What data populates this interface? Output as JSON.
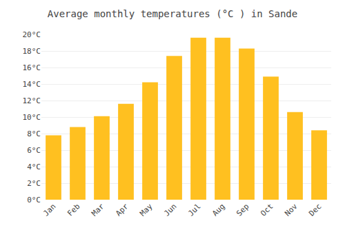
{
  "chart_data": {
    "type": "bar",
    "title": "Average monthly temperatures (°C ) in Sande",
    "categories": [
      "Jan",
      "Feb",
      "Mar",
      "Apr",
      "May",
      "Jun",
      "Jul",
      "Aug",
      "Sep",
      "Oct",
      "Nov",
      "Dec"
    ],
    "values": [
      7.8,
      8.8,
      10.1,
      11.6,
      14.2,
      17.4,
      19.6,
      19.6,
      18.3,
      14.9,
      10.6,
      8.4
    ],
    "color": "#FFC020",
    "ylim": [
      0,
      20
    ],
    "yticks": [
      {
        "value": 0,
        "label": "0°C"
      },
      {
        "value": 2,
        "label": "2°C"
      },
      {
        "value": 4,
        "label": "4°C"
      },
      {
        "value": 6,
        "label": "6°C"
      },
      {
        "value": 8,
        "label": "8°C"
      },
      {
        "value": 10,
        "label": "10°C"
      },
      {
        "value": 12,
        "label": "12°C"
      },
      {
        "value": 14,
        "label": "14°C"
      },
      {
        "value": 16,
        "label": "16°C"
      },
      {
        "value": 18,
        "label": "18°C"
      },
      {
        "value": 20,
        "label": "20°C"
      }
    ],
    "grid": true
  }
}
